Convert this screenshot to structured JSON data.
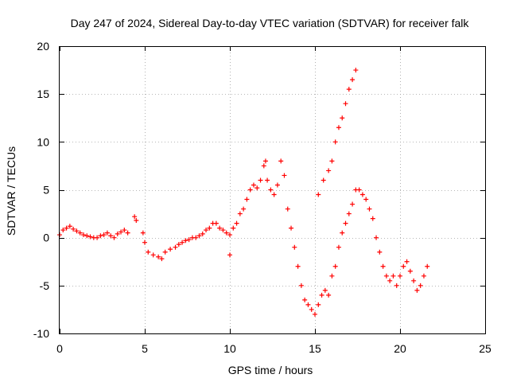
{
  "chart_data": {
    "type": "scatter",
    "title": "Day 247 of 2024, Sidereal Day-to-day VTEC variation (SDTVAR) for receiver falk",
    "xlabel": "GPS time / hours",
    "ylabel": "SDTVAR / TECUs",
    "xlim": [
      0,
      25
    ],
    "ylim": [
      -10,
      20
    ],
    "xticks": [
      0,
      5,
      10,
      15,
      20,
      25
    ],
    "yticks": [
      -10,
      -5,
      0,
      5,
      10,
      15,
      20
    ],
    "grid": true,
    "marker": "+",
    "color": "#ff0000",
    "series": [
      {
        "name": "SDTVAR",
        "x": [
          0.0,
          0.2,
          0.4,
          0.6,
          0.8,
          1.0,
          1.2,
          1.4,
          1.6,
          1.8,
          2.0,
          2.2,
          2.4,
          2.6,
          2.8,
          3.0,
          3.2,
          3.4,
          3.6,
          3.8,
          4.0,
          4.4,
          4.5,
          4.9,
          5.0,
          5.2,
          5.5,
          5.8,
          6.0,
          6.2,
          6.5,
          6.8,
          7.0,
          7.2,
          7.4,
          7.6,
          7.8,
          8.0,
          8.2,
          8.4,
          8.6,
          8.8,
          9.0,
          9.2,
          9.4,
          9.6,
          9.8,
          10.0,
          10.0,
          10.2,
          10.4,
          10.6,
          10.8,
          11.0,
          11.2,
          11.4,
          11.6,
          11.8,
          12.0,
          12.1,
          12.2,
          12.4,
          12.6,
          12.8,
          13.0,
          13.2,
          13.4,
          13.6,
          13.8,
          14.0,
          14.2,
          14.4,
          14.6,
          14.8,
          15.0,
          15.2,
          15.4,
          15.6,
          15.8,
          16.0,
          16.2,
          16.4,
          16.6,
          16.8,
          17.0,
          17.2,
          17.4,
          15.2,
          15.5,
          15.8,
          16.0,
          16.2,
          16.4,
          16.6,
          16.8,
          17.0,
          17.2,
          17.4,
          17.6,
          17.8,
          18.0,
          18.2,
          18.4,
          18.6,
          18.8,
          19.0,
          19.2,
          19.4,
          19.6,
          19.8,
          20.0,
          20.2,
          20.4,
          20.6,
          20.8,
          21.0,
          21.2,
          21.4,
          21.6
        ],
        "y": [
          0.3,
          0.8,
          1.0,
          1.2,
          0.9,
          0.7,
          0.5,
          0.3,
          0.2,
          0.1,
          0.0,
          0.0,
          0.2,
          0.3,
          0.5,
          0.2,
          0.0,
          0.4,
          0.6,
          0.8,
          0.5,
          2.2,
          1.8,
          0.5,
          -0.5,
          -1.5,
          -1.8,
          -2.0,
          -2.2,
          -1.5,
          -1.2,
          -1.0,
          -0.7,
          -0.5,
          -0.3,
          -0.2,
          0.0,
          0.0,
          0.2,
          0.4,
          0.8,
          1.0,
          1.5,
          1.5,
          1.0,
          0.8,
          0.5,
          -1.8,
          0.3,
          1.0,
          1.5,
          2.5,
          3.0,
          4.0,
          5.0,
          5.5,
          5.2,
          6.0,
          7.5,
          8.0,
          6.0,
          5.0,
          4.5,
          5.5,
          8.0,
          6.5,
          3.0,
          1.0,
          -1.0,
          -3.0,
          -5.0,
          -6.5,
          -7.0,
          -7.5,
          -8.0,
          -7.0,
          -6.0,
          -5.5,
          -6.0,
          -4.0,
          -3.0,
          -1.0,
          0.5,
          1.5,
          2.5,
          3.5,
          5.0,
          4.5,
          6.0,
          7.0,
          8.0,
          10.0,
          11.5,
          12.5,
          14.0,
          15.5,
          16.5,
          17.5,
          5.0,
          4.5,
          4.0,
          3.0,
          2.0,
          0.0,
          -1.5,
          -3.0,
          -4.0,
          -4.5,
          -4.0,
          -5.0,
          -4.0,
          -3.0,
          -2.5,
          -3.5,
          -4.5,
          -5.5,
          -5.0,
          -4.0,
          -3.0
        ]
      }
    ]
  }
}
